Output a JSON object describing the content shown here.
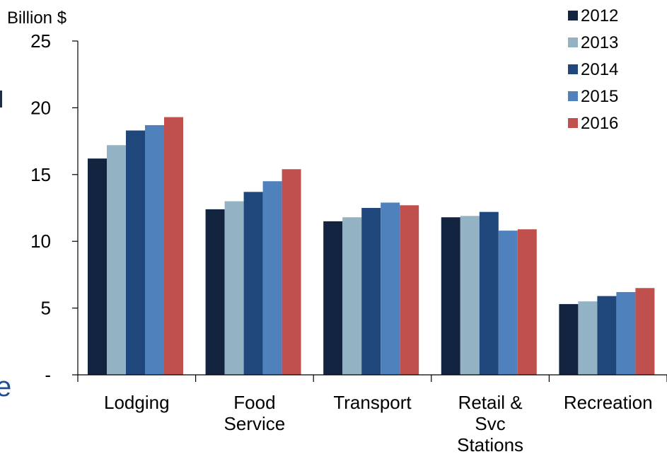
{
  "chart_data": {
    "type": "bar",
    "ylabel": "Billion $",
    "ylim": [
      0,
      25
    ],
    "yticks": [
      {
        "value": 0,
        "label": "-"
      },
      {
        "value": 5,
        "label": "5"
      },
      {
        "value": 10,
        "label": "10"
      },
      {
        "value": 15,
        "label": "15"
      },
      {
        "value": 20,
        "label": "20"
      },
      {
        "value": 25,
        "label": "25"
      }
    ],
    "categories": [
      {
        "name": "Lodging",
        "lines": [
          "Lodging"
        ]
      },
      {
        "name": "Food Service",
        "lines": [
          "Food",
          "Service"
        ]
      },
      {
        "name": "Transport",
        "lines": [
          "Transport"
        ]
      },
      {
        "name": "Retail & Svc Stations",
        "lines": [
          "Retail &",
          "Svc",
          "Stations"
        ]
      },
      {
        "name": "Recreation",
        "lines": [
          "Recreation"
        ]
      }
    ],
    "series": [
      {
        "name": "2012",
        "color": "#12243f",
        "values": [
          16.2,
          12.4,
          11.5,
          11.8,
          5.3
        ]
      },
      {
        "name": "2013",
        "color": "#93b2c4",
        "values": [
          17.2,
          13.0,
          11.8,
          11.9,
          5.5
        ]
      },
      {
        "name": "2014",
        "color": "#1f477b",
        "values": [
          18.3,
          13.7,
          12.5,
          12.2,
          5.9
        ]
      },
      {
        "name": "2015",
        "color": "#4f81bd",
        "values": [
          18.7,
          14.5,
          12.9,
          10.8,
          6.2
        ]
      },
      {
        "name": "2016",
        "color": "#c0504d",
        "values": [
          19.3,
          15.4,
          12.7,
          10.9,
          6.5
        ]
      }
    ],
    "legend": "top-right",
    "grid": false
  },
  "edge_fragments": {
    "left_text": "e",
    "left_color": "#1f4e99"
  }
}
